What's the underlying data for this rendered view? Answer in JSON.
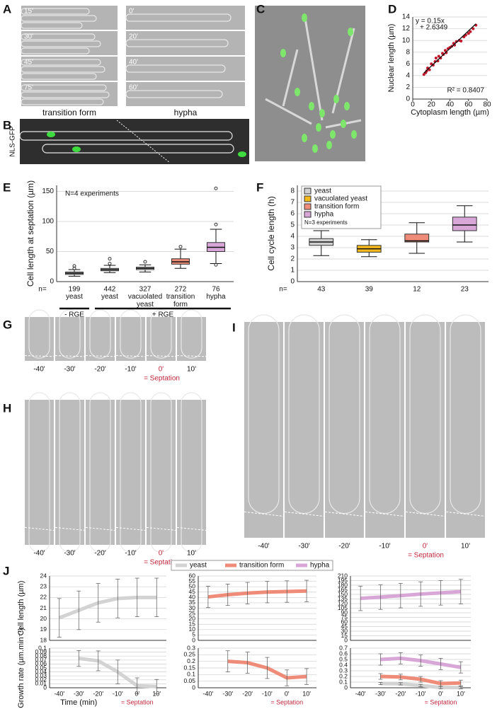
{
  "panels": {
    "A": {
      "label": "A",
      "left_frames": [
        "15'",
        "30'",
        "45'",
        "75'"
      ],
      "right_frames": [
        "0'",
        "20'",
        "40'",
        "60'"
      ],
      "left_caption": "transition form",
      "right_caption": "hypha"
    },
    "B": {
      "label": "B",
      "channel": "NLS-GFP"
    },
    "C": {
      "label": "C"
    },
    "D": {
      "label": "D"
    },
    "E": {
      "label": "E"
    },
    "F": {
      "label": "F"
    },
    "G": {
      "label": "G",
      "times": [
        "-40'",
        "-30'",
        "-20'",
        "-10'",
        "0'",
        "10'"
      ],
      "note": "= Septation"
    },
    "H": {
      "label": "H",
      "times": [
        "-40'",
        "-30'",
        "-20'",
        "-10'",
        "0'",
        "10'"
      ],
      "note": "= Septation"
    },
    "I": {
      "label": "I",
      "times": [
        "-40'",
        "-30'",
        "-20'",
        "-10'",
        "0'",
        "10'"
      ],
      "note": "= Septation"
    },
    "J": {
      "label": "J"
    }
  },
  "chart_data": [
    {
      "type": "scatter",
      "color": "#c0182a",
      "x": [
        12,
        14,
        15,
        16,
        18,
        20,
        22,
        24,
        25,
        27,
        28,
        30,
        32,
        33,
        35,
        36,
        38,
        40,
        42,
        44,
        45,
        47,
        50,
        52,
        55,
        57,
        60,
        62,
        65,
        68
      ],
      "y": [
        4.2,
        4.5,
        4.8,
        5.3,
        5.0,
        6.0,
        5.8,
        6.4,
        7.0,
        6.5,
        7.3,
        7.0,
        7.8,
        7.6,
        8.3,
        7.9,
        8.6,
        8.8,
        9.0,
        9.5,
        9.2,
        9.8,
        10.0,
        9.9,
        10.6,
        10.9,
        11.2,
        11.5,
        12.0,
        12.6
      ],
      "xlim": [
        0,
        80
      ],
      "ylim": [
        0,
        14
      ],
      "xticks": [
        0,
        20,
        40,
        60,
        80
      ],
      "yticks": [
        0,
        2,
        4,
        6,
        8,
        10,
        12,
        14
      ],
      "grid": true,
      "xlabel": "Cytoplasm length (µm)",
      "ylabel": "Nuclear length (µm)",
      "trendline": {
        "slope": 0.15,
        "intercept": 2.6349
      },
      "annotations": [
        "y = 0.15x",
        "+ 2.6349",
        "R² = 0.8407"
      ]
    },
    {
      "type": "box",
      "categories": [
        "yeast",
        "yeast",
        "vacuolated yeast",
        "transition form",
        "hypha"
      ],
      "colors": [
        "#d0d0d0",
        "#d0d0d0",
        "#d0d0d0",
        "#ef8c79",
        "#d9a6d8"
      ],
      "boxes": [
        {
          "whislo": 9,
          "q1": 12,
          "med": 14,
          "q3": 16,
          "whishi": 20,
          "fliers": [
            22,
            26
          ]
        },
        {
          "whislo": 15,
          "q1": 18,
          "med": 20,
          "q3": 22,
          "whishi": 27,
          "fliers": [
            30,
            38
          ]
        },
        {
          "whislo": 16,
          "q1": 20,
          "med": 22,
          "q3": 24,
          "whishi": 28,
          "fliers": [
            33
          ]
        },
        {
          "whislo": 22,
          "q1": 29,
          "med": 33,
          "q3": 38,
          "whishi": 54,
          "fliers": [
            58
          ]
        },
        {
          "whislo": 30,
          "q1": 50,
          "med": 57,
          "q3": 65,
          "whishi": 87,
          "fliers": [
            28,
            95,
            155
          ]
        }
      ],
      "ylim": [
        0,
        160
      ],
      "yticks": [
        0,
        50,
        100,
        150
      ],
      "grid": true,
      "ylabel": "Cell length at septation (µm)",
      "n_label": "n=",
      "n": [
        199,
        442,
        327,
        272,
        76
      ],
      "annotation": "N=4 experiments",
      "groups": [
        "- RGE",
        "+ RGE"
      ]
    },
    {
      "type": "box",
      "categories": [
        "yeast",
        "vacuolated yeast",
        "transition form",
        "hypha"
      ],
      "colors": [
        "#d0d0d0",
        "#f2b81c",
        "#ef8c79",
        "#d9a6d8"
      ],
      "boxes": [
        {
          "whislo": 2.3,
          "q1": 3.2,
          "med": 3.5,
          "q3": 3.8,
          "whishi": 4.5,
          "fliers": []
        },
        {
          "whislo": 2.2,
          "q1": 2.6,
          "med": 2.9,
          "q3": 3.2,
          "whishi": 3.7,
          "fliers": []
        },
        {
          "whislo": 2.5,
          "q1": 3.5,
          "med": 3.6,
          "q3": 4.2,
          "whishi": 5.2,
          "fliers": []
        },
        {
          "whislo": 3.5,
          "q1": 4.5,
          "med": 5.0,
          "q3": 5.7,
          "whishi": 6.7,
          "fliers": []
        }
      ],
      "ylim": [
        0,
        8.5
      ],
      "yticks": [
        0,
        1,
        2,
        3,
        4,
        5,
        6,
        7,
        8
      ],
      "grid": true,
      "ylabel": "Cell cycle length (h)",
      "n_label": "n=",
      "n": [
        43,
        39,
        12,
        23
      ],
      "annotation": "N=3 experiments",
      "legend": "top-left"
    },
    {
      "type": "line",
      "series": [
        {
          "color": "#d3d3d3",
          "values": [
            20.1,
            20.8,
            21.5,
            21.9,
            22,
            22
          ],
          "errors": [
            1.8,
            1.8,
            1.8,
            1.8,
            1.8,
            1.8
          ]
        }
      ],
      "ylim": [
        18,
        24
      ],
      "yticks": [
        18,
        19,
        20,
        21,
        22,
        23,
        24
      ],
      "grid": true,
      "ylabel": "Cell length (µm)"
    },
    {
      "type": "line",
      "series": [
        {
          "color": "#ef8c79",
          "values": [
            40.5,
            42.5,
            44,
            45,
            45.5,
            46
          ],
          "errors": [
            10,
            10,
            10,
            10,
            10,
            10
          ]
        }
      ],
      "ylim": [
        0,
        60
      ],
      "yticks": [
        0,
        5,
        10,
        15,
        20,
        25,
        30,
        35,
        40,
        45,
        50,
        55,
        60
      ],
      "grid": true
    },
    {
      "type": "line",
      "series": [
        {
          "color": "#d9a6d8",
          "values": [
            137,
            141,
            146,
            151,
            155,
            159
          ],
          "errors": [
            40,
            40,
            40,
            40,
            40,
            40
          ]
        }
      ],
      "ylim": [
        0,
        210
      ],
      "yticks": [
        0,
        15,
        30,
        45,
        60,
        75,
        90,
        105,
        120,
        135,
        150,
        165,
        180,
        195,
        210
      ],
      "grid": true
    },
    {
      "type": "line",
      "categories": [
        "-40'",
        "-30'",
        "-20'",
        "-10'",
        "0'",
        "10'"
      ],
      "series": [
        {
          "color": "#d3d3d3",
          "values": [
            null,
            0.074,
            0.068,
            0.04,
            0.005,
            0.003
          ],
          "errors": [
            null,
            0.02,
            0.025,
            0.03,
            0.02,
            0.018
          ]
        }
      ],
      "ylim": [
        0,
        0.1
      ],
      "yticks": [
        0,
        0.01,
        0.02,
        0.03,
        0.04,
        0.05,
        0.06,
        0.07,
        0.08,
        0.09,
        0.1
      ],
      "grid": true,
      "ylabel": "Growth rate (µm.min⁻¹)",
      "xlabel": "Time (min)",
      "note": "= Septation"
    },
    {
      "type": "line",
      "categories": [
        "-40'",
        "-30'",
        "-20'",
        "-10'",
        "0'",
        "10'"
      ],
      "series": [
        {
          "color": "#ef8c79",
          "values": [
            null,
            0.2,
            0.19,
            0.15,
            0.075,
            0.085
          ],
          "errors": [
            null,
            0.08,
            0.08,
            0.08,
            0.06,
            0.06
          ]
        }
      ],
      "ylim": [
        0,
        0.3
      ],
      "yticks": [
        0,
        0.05,
        0.1,
        0.15,
        0.2,
        0.25,
        0.3
      ],
      "grid": true,
      "note": "= Septation"
    },
    {
      "type": "line",
      "categories": [
        "-40'",
        "-30'",
        "-20'",
        "-10'",
        "0'",
        "10'"
      ],
      "series": [
        {
          "name": "yeast",
          "color": "#d3d3d3",
          "values": [
            null,
            0.075,
            0.07,
            0.04,
            0.005,
            0.003
          ],
          "errors": [
            null,
            0.02,
            0.02,
            0.02,
            0.02,
            0.02
          ]
        },
        {
          "name": "transition form",
          "color": "#ef8c79",
          "values": [
            null,
            0.2,
            0.19,
            0.15,
            0.075,
            0.085
          ],
          "errors": [
            null,
            0.05,
            0.05,
            0.05,
            0.05,
            0.05
          ]
        },
        {
          "name": "hypha",
          "color": "#d9a6d8",
          "values": [
            null,
            0.5,
            0.52,
            0.48,
            0.42,
            0.36
          ],
          "errors": [
            null,
            0.1,
            0.1,
            0.1,
            0.1,
            0.1
          ]
        }
      ],
      "ylim": [
        0,
        0.7
      ],
      "yticks": [
        0,
        0.1,
        0.2,
        0.3,
        0.4,
        0.5,
        0.6,
        0.7
      ],
      "grid": true,
      "note": "= Septation",
      "legend": "top"
    }
  ]
}
